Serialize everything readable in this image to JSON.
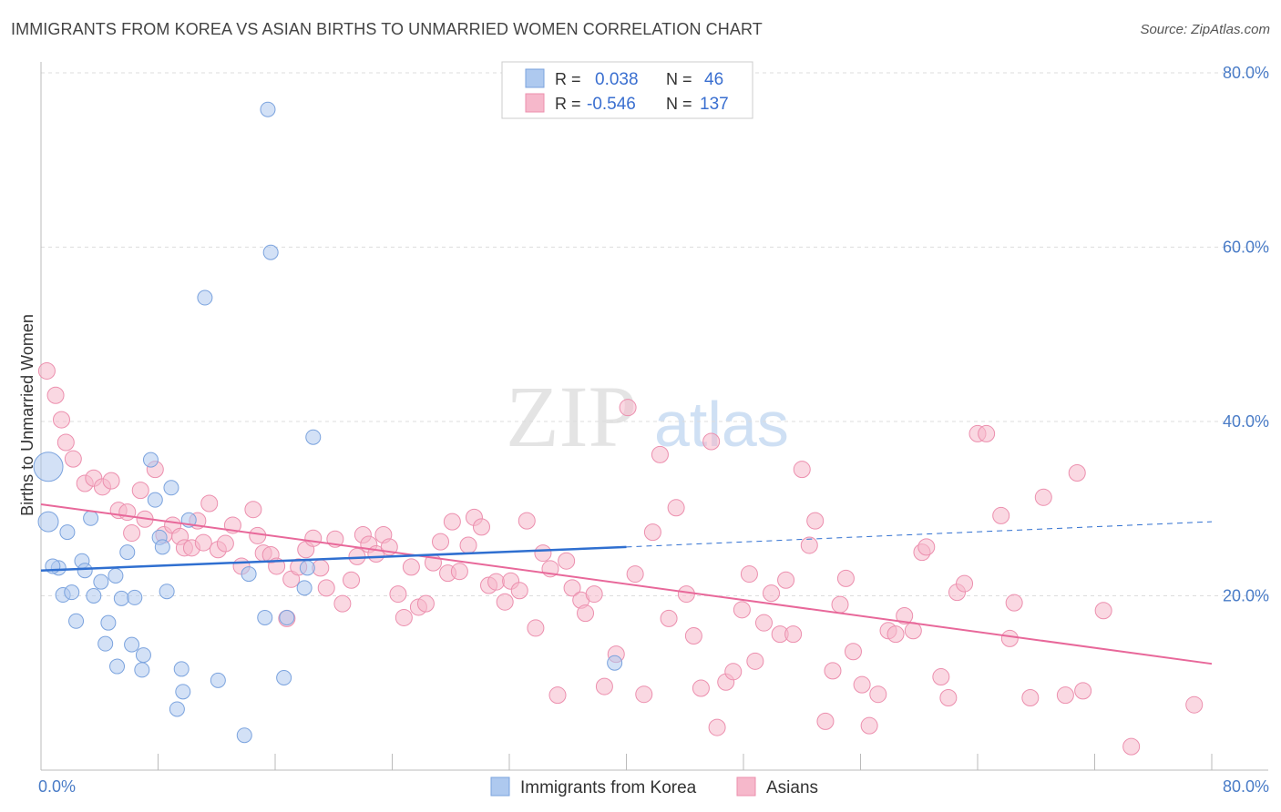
{
  "title": "IMMIGRANTS FROM KOREA VS ASIAN BIRTHS TO UNMARRIED WOMEN CORRELATION CHART",
  "source": "Source: ZipAtlas.com",
  "watermark": {
    "zip": "ZIP",
    "atlas": "atlas"
  },
  "colors": {
    "blue_fill": "#aec9ef",
    "blue_stroke": "#7ba3de",
    "blue_line": "#2f6fd0",
    "pink_fill": "#f6b8cb",
    "pink_stroke": "#ec8fae",
    "pink_line": "#e8689a",
    "tick_label": "#4a7cc7",
    "grid": "#dddddd"
  },
  "legend": {
    "rows": [
      {
        "r_label": "R =",
        "r_value": "0.038",
        "n_label": "N =",
        "n_value": "46"
      },
      {
        "r_label": "R =",
        "r_value": "-0.546",
        "n_label": "N =",
        "n_value": "137"
      }
    ]
  },
  "bottom_legend": [
    "Immigrants from Korea",
    "Asians"
  ],
  "chart_data": {
    "type": "scatter",
    "title": "IMMIGRANTS FROM KOREA VS ASIAN BIRTHS TO UNMARRIED WOMEN CORRELATION CHART",
    "xlabel": "",
    "ylabel": "Births to Unmarried Women",
    "xlim": [
      0,
      80
    ],
    "ylim": [
      0,
      80
    ],
    "x_tick_labels": [
      "0.0%",
      "80.0%"
    ],
    "y_tick_labels": [
      "20.0%",
      "40.0%",
      "60.0%",
      "80.0%"
    ],
    "y_ticks": [
      20,
      40,
      60,
      80
    ],
    "series": [
      {
        "name": "Immigrants from Korea",
        "r": 0.038,
        "n": 46,
        "trend": {
          "x0": 0,
          "y0": 22.9,
          "x1": 40,
          "y1": 25.6,
          "dash_to_x": 80,
          "dash_to_y": 28.5
        },
        "points": [
          [
            0.5,
            34.8,
            3
          ],
          [
            0.5,
            28.5,
            2
          ],
          [
            1.2,
            23.2,
            1
          ],
          [
            0.8,
            23.4,
            1
          ],
          [
            1.5,
            20.1,
            1
          ],
          [
            2.1,
            20.4,
            1
          ],
          [
            1.8,
            27.3,
            1
          ],
          [
            2.4,
            17.1,
            1
          ],
          [
            2.8,
            24.0,
            1
          ],
          [
            3.0,
            22.9,
            1
          ],
          [
            3.4,
            28.9,
            1
          ],
          [
            3.6,
            20.0,
            1
          ],
          [
            4.1,
            21.6,
            1
          ],
          [
            4.4,
            14.5,
            1
          ],
          [
            4.6,
            16.9,
            1
          ],
          [
            5.1,
            22.3,
            1
          ],
          [
            5.2,
            11.9,
            1
          ],
          [
            5.5,
            19.7,
            1
          ],
          [
            5.9,
            25.0,
            1
          ],
          [
            6.2,
            14.4,
            1
          ],
          [
            6.4,
            19.8,
            1
          ],
          [
            6.9,
            11.5,
            1
          ],
          [
            7.0,
            13.2,
            1
          ],
          [
            7.5,
            35.6,
            1
          ],
          [
            7.8,
            31.0,
            1
          ],
          [
            8.1,
            26.7,
            1
          ],
          [
            8.3,
            25.6,
            1
          ],
          [
            8.6,
            20.5,
            1
          ],
          [
            8.9,
            32.4,
            1
          ],
          [
            9.3,
            7.0,
            1
          ],
          [
            9.6,
            11.6,
            1
          ],
          [
            9.7,
            9.0,
            1
          ],
          [
            10.1,
            28.7,
            1
          ],
          [
            11.2,
            54.2,
            1
          ],
          [
            12.1,
            10.3,
            1
          ],
          [
            13.9,
            4.0,
            1
          ],
          [
            14.2,
            22.5,
            1
          ],
          [
            15.3,
            17.5,
            1
          ],
          [
            15.5,
            75.8,
            1
          ],
          [
            15.7,
            59.4,
            1
          ],
          [
            16.6,
            10.6,
            1
          ],
          [
            16.8,
            17.5,
            1
          ],
          [
            18.0,
            20.9,
            1
          ],
          [
            18.2,
            23.2,
            1
          ],
          [
            18.6,
            38.2,
            1
          ],
          [
            39.2,
            12.3,
            1
          ]
        ]
      },
      {
        "name": "Asians",
        "r": -0.546,
        "n": 137,
        "trend": {
          "x0": 0,
          "y0": 30.5,
          "x1": 80,
          "y1": 12.2
        },
        "points": [
          [
            0.4,
            45.8,
            1
          ],
          [
            1.0,
            43.0,
            1
          ],
          [
            1.4,
            40.2,
            1
          ],
          [
            1.7,
            37.6,
            1
          ],
          [
            2.2,
            35.7,
            1
          ],
          [
            3.0,
            32.9,
            1
          ],
          [
            3.6,
            33.5,
            1
          ],
          [
            4.2,
            32.5,
            1
          ],
          [
            4.8,
            33.2,
            1
          ],
          [
            5.3,
            29.8,
            1
          ],
          [
            5.9,
            29.6,
            1
          ],
          [
            6.2,
            27.2,
            1
          ],
          [
            6.8,
            32.1,
            1
          ],
          [
            7.1,
            28.8,
            1
          ],
          [
            7.8,
            34.5,
            1
          ],
          [
            8.4,
            27.0,
            1
          ],
          [
            9.0,
            28.1,
            1
          ],
          [
            9.5,
            26.8,
            1
          ],
          [
            9.8,
            25.5,
            1
          ],
          [
            10.3,
            25.5,
            1
          ],
          [
            10.7,
            28.6,
            1
          ],
          [
            11.1,
            26.1,
            1
          ],
          [
            11.5,
            30.6,
            1
          ],
          [
            12.1,
            25.3,
            1
          ],
          [
            12.6,
            26.0,
            1
          ],
          [
            13.1,
            28.1,
            1
          ],
          [
            13.7,
            23.4,
            1
          ],
          [
            14.5,
            29.9,
            1
          ],
          [
            14.8,
            26.9,
            1
          ],
          [
            15.2,
            24.9,
            1
          ],
          [
            15.7,
            24.7,
            1
          ],
          [
            16.1,
            23.4,
            1
          ],
          [
            16.8,
            17.4,
            1
          ],
          [
            17.1,
            21.9,
            1
          ],
          [
            17.6,
            23.3,
            1
          ],
          [
            18.1,
            25.3,
            1
          ],
          [
            18.6,
            26.6,
            1
          ],
          [
            19.1,
            23.2,
            1
          ],
          [
            19.5,
            20.9,
            1
          ],
          [
            20.1,
            26.5,
            1
          ],
          [
            20.6,
            19.1,
            1
          ],
          [
            21.2,
            21.8,
            1
          ],
          [
            21.6,
            24.5,
            1
          ],
          [
            22.0,
            27.0,
            1
          ],
          [
            22.4,
            25.9,
            1
          ],
          [
            22.9,
            24.8,
            1
          ],
          [
            23.4,
            27.0,
            1
          ],
          [
            23.8,
            25.6,
            1
          ],
          [
            24.4,
            20.2,
            1
          ],
          [
            24.8,
            17.5,
            1
          ],
          [
            25.3,
            23.3,
            1
          ],
          [
            25.8,
            18.7,
            1
          ],
          [
            26.3,
            19.1,
            1
          ],
          [
            26.8,
            23.8,
            1
          ],
          [
            27.3,
            26.2,
            1
          ],
          [
            27.8,
            22.6,
            1
          ],
          [
            28.1,
            28.5,
            1
          ],
          [
            28.6,
            22.8,
            1
          ],
          [
            29.2,
            25.8,
            1
          ],
          [
            29.6,
            29.0,
            1
          ],
          [
            30.1,
            27.9,
            1
          ],
          [
            30.6,
            21.2,
            1
          ],
          [
            31.1,
            21.6,
            1
          ],
          [
            31.7,
            19.3,
            1
          ],
          [
            32.1,
            21.7,
            1
          ],
          [
            32.7,
            20.6,
            1
          ],
          [
            33.2,
            28.6,
            1
          ],
          [
            33.8,
            16.3,
            1
          ],
          [
            34.3,
            24.9,
            1
          ],
          [
            34.8,
            23.1,
            1
          ],
          [
            35.3,
            8.6,
            1
          ],
          [
            35.9,
            24.0,
            1
          ],
          [
            36.3,
            20.9,
            1
          ],
          [
            36.9,
            19.5,
            1
          ],
          [
            37.2,
            18.0,
            1
          ],
          [
            37.8,
            20.2,
            1
          ],
          [
            38.5,
            9.6,
            1
          ],
          [
            39.3,
            13.3,
            1
          ],
          [
            40.1,
            41.6,
            1
          ],
          [
            40.6,
            22.5,
            1
          ],
          [
            41.2,
            8.7,
            1
          ],
          [
            41.8,
            27.3,
            1
          ],
          [
            42.3,
            36.2,
            1
          ],
          [
            42.9,
            17.4,
            1
          ],
          [
            43.4,
            30.1,
            1
          ],
          [
            44.1,
            20.2,
            1
          ],
          [
            44.6,
            15.4,
            1
          ],
          [
            45.1,
            9.4,
            1
          ],
          [
            45.8,
            37.7,
            1
          ],
          [
            46.2,
            4.9,
            1
          ],
          [
            46.8,
            10.1,
            1
          ],
          [
            47.3,
            11.3,
            1
          ],
          [
            47.9,
            18.4,
            1
          ],
          [
            48.4,
            22.5,
            1
          ],
          [
            48.8,
            12.5,
            1
          ],
          [
            49.4,
            16.9,
            1
          ],
          [
            49.9,
            20.3,
            1
          ],
          [
            50.5,
            15.6,
            1
          ],
          [
            50.9,
            21.8,
            1
          ],
          [
            51.4,
            15.6,
            1
          ],
          [
            52.0,
            34.5,
            1
          ],
          [
            52.5,
            25.8,
            1
          ],
          [
            52.9,
            28.6,
            1
          ],
          [
            53.6,
            5.6,
            1
          ],
          [
            54.1,
            11.4,
            1
          ],
          [
            54.6,
            19.0,
            1
          ],
          [
            55.0,
            22.0,
            1
          ],
          [
            55.5,
            13.6,
            1
          ],
          [
            56.1,
            9.8,
            1
          ],
          [
            56.6,
            5.1,
            1
          ],
          [
            57.2,
            8.7,
            1
          ],
          [
            57.9,
            16.0,
            1
          ],
          [
            58.4,
            15.6,
            1
          ],
          [
            59.0,
            17.7,
            1
          ],
          [
            59.6,
            16.0,
            1
          ],
          [
            60.2,
            25.0,
            1
          ],
          [
            60.5,
            25.6,
            1
          ],
          [
            61.5,
            10.7,
            1
          ],
          [
            62.0,
            8.3,
            1
          ],
          [
            62.6,
            20.4,
            1
          ],
          [
            63.1,
            21.4,
            1
          ],
          [
            64.0,
            38.6,
            1
          ],
          [
            64.6,
            38.6,
            1
          ],
          [
            65.6,
            29.2,
            1
          ],
          [
            66.2,
            15.1,
            1
          ],
          [
            66.5,
            19.2,
            1
          ],
          [
            67.6,
            8.3,
            1
          ],
          [
            68.5,
            31.3,
            1
          ],
          [
            70.0,
            8.6,
            1
          ],
          [
            70.8,
            34.1,
            1
          ],
          [
            71.2,
            9.1,
            1
          ],
          [
            72.6,
            18.3,
            1
          ],
          [
            74.5,
            2.7,
            1
          ],
          [
            78.8,
            7.5,
            1
          ]
        ]
      }
    ]
  }
}
